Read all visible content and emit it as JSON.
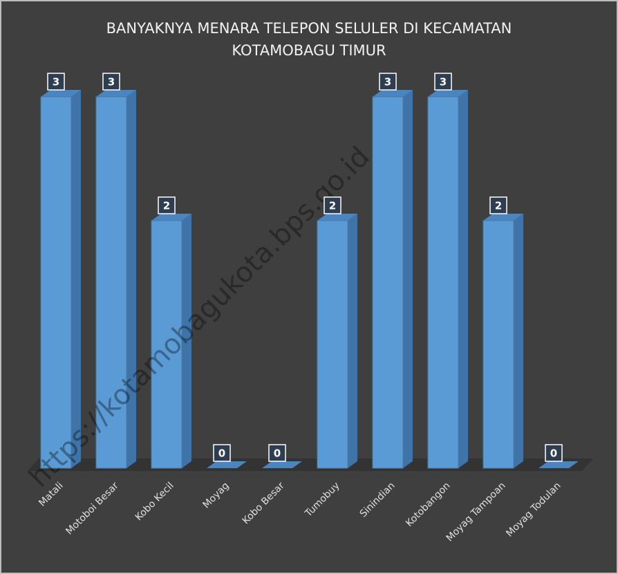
{
  "chart_data": {
    "type": "bar3d",
    "title": "BANYAKNYA MENARA TELEPON SELULER DI KECAMATAN KOTAMOBAGU TIMUR",
    "categories": [
      "Matali",
      "Motoboi Besar",
      "Kobo Kecil",
      "Moyag",
      "Kobo Besar",
      "Tumobuy",
      "Sinindian",
      "Kotobangon",
      "Moyag Tampoan",
      "Moyag Todulan"
    ],
    "values": [
      3,
      3,
      2,
      0,
      0,
      2,
      3,
      3,
      2,
      0
    ],
    "color": "#5b9bd5",
    "ylim": [
      0,
      3
    ],
    "watermark": "https://kotamobagukota.bps.go.id"
  }
}
